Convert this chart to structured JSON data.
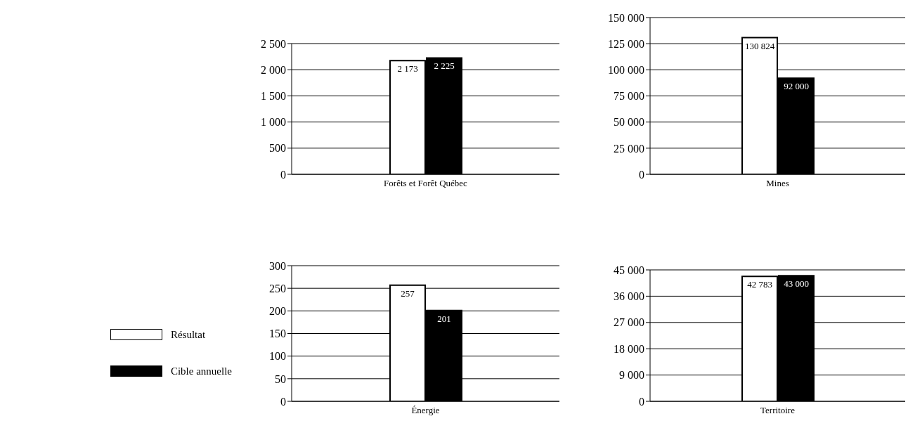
{
  "chart_data": [
    {
      "type": "bar",
      "categories": [
        "Forêts et Forêt Québec"
      ],
      "series": [
        {
          "color": "#ffffff",
          "values": [
            2173
          ],
          "value_labels": [
            "2 173"
          ]
        },
        {
          "color": "#000000",
          "values": [
            2225
          ],
          "value_labels": [
            "2 225"
          ]
        }
      ],
      "ylim": [
        0,
        2500
      ],
      "yticks": [
        0,
        500,
        {
          "value": 1000,
          "label": "1 000"
        },
        {
          "value": 1500,
          "label": "1 500"
        },
        {
          "value": 2000,
          "label": "2 000"
        },
        {
          "value": 2500,
          "label": "2 500"
        }
      ],
      "grid": "y",
      "legend": false
    },
    {
      "type": "bar",
      "categories": [
        "Mines"
      ],
      "series": [
        {
          "color": "#ffffff",
          "values": [
            130824
          ],
          "value_labels": [
            "130 824"
          ]
        },
        {
          "color": "#000000",
          "values": [
            92000
          ],
          "value_labels": [
            "92 000"
          ]
        }
      ],
      "ylim": [
        0,
        150000
      ],
      "yticks": [
        0,
        {
          "value": 25000,
          "label": "25 000"
        },
        {
          "value": 50000,
          "label": "50 000"
        },
        {
          "value": 75000,
          "label": "75 000"
        },
        {
          "value": 100000,
          "label": "100 000"
        },
        {
          "value": 125000,
          "label": "125 000"
        },
        {
          "value": 150000,
          "label": "150 000"
        }
      ],
      "grid": "y",
      "legend": false
    },
    {
      "type": "bar",
      "categories": [
        "Énergie"
      ],
      "series": [
        {
          "name": "Résultat",
          "color": "#ffffff",
          "values": [
            257
          ],
          "value_labels": [
            "257"
          ]
        },
        {
          "name": "Cible annuelle",
          "color": "#000000",
          "values": [
            201
          ],
          "value_labels": [
            "201"
          ]
        }
      ],
      "ylim": [
        0,
        300
      ],
      "yticks": [
        0,
        50,
        100,
        150,
        200,
        250,
        300
      ],
      "grid": "y",
      "legend": "left"
    },
    {
      "type": "bar",
      "categories": [
        "Territoire"
      ],
      "series": [
        {
          "color": "#ffffff",
          "values": [
            42783
          ],
          "value_labels": [
            "42 783"
          ]
        },
        {
          "color": "#000000",
          "values": [
            43000
          ],
          "value_labels": [
            "43 000"
          ]
        }
      ],
      "ylim": [
        0,
        45000
      ],
      "yticks": [
        0,
        {
          "value": 9000,
          "label": "9 000"
        },
        {
          "value": 18000,
          "label": "18 000"
        },
        {
          "value": 27000,
          "label": "27 000"
        },
        {
          "value": 36000,
          "label": "36 000"
        },
        {
          "value": 45000,
          "label": "45 000"
        }
      ],
      "grid": "y",
      "legend": false
    }
  ]
}
